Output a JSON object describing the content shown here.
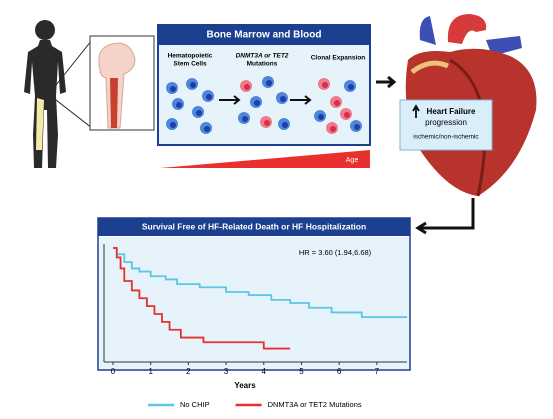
{
  "panel": {
    "title": "Bone Marrow and Blood",
    "stem_cells": [
      "Hematopoietic",
      "Stem Cells"
    ],
    "mutations": [
      "DNMT3A or TET2",
      "Mutations"
    ],
    "expansion": "Clonal Expansion",
    "age": "Age"
  },
  "heart": {
    "title": [
      "Heart Failure",
      "progression"
    ],
    "subtitle": "ischemic/non-ischemic"
  },
  "chart_data": {
    "type": "step",
    "title": "Survival Free of HF-Related Death or HF Hospitalization",
    "annotation": "HR = 3.60 (1.94,6.68)",
    "x_label": "Years",
    "xlim": [
      0,
      7.8
    ],
    "xticks": [
      0,
      1,
      2,
      3,
      4,
      5,
      6,
      7
    ],
    "ylim": [
      0.3,
      1.0
    ],
    "series": [
      {
        "name": "No CHIP",
        "color": "#5cc6e6",
        "x": [
          0,
          0.1,
          0.3,
          0.5,
          0.7,
          1.0,
          1.4,
          1.7,
          2.3,
          3.0,
          3.6,
          4.2,
          4.7,
          5.2,
          5.8,
          6.6,
          7.8
        ],
        "values": [
          1.0,
          0.96,
          0.91,
          0.87,
          0.85,
          0.82,
          0.8,
          0.77,
          0.75,
          0.72,
          0.7,
          0.67,
          0.65,
          0.62,
          0.59,
          0.56,
          0.56
        ]
      },
      {
        "name": "DNMT3A or TET2 Mutations",
        "color": "#e8312f",
        "x": [
          0,
          0.1,
          0.2,
          0.3,
          0.5,
          0.7,
          0.9,
          1.1,
          1.3,
          1.5,
          1.8,
          2.4,
          4.0,
          4.7
        ],
        "values": [
          1.0,
          0.94,
          0.87,
          0.79,
          0.73,
          0.68,
          0.63,
          0.58,
          0.53,
          0.48,
          0.43,
          0.4,
          0.36,
          0.36
        ]
      }
    ]
  }
}
